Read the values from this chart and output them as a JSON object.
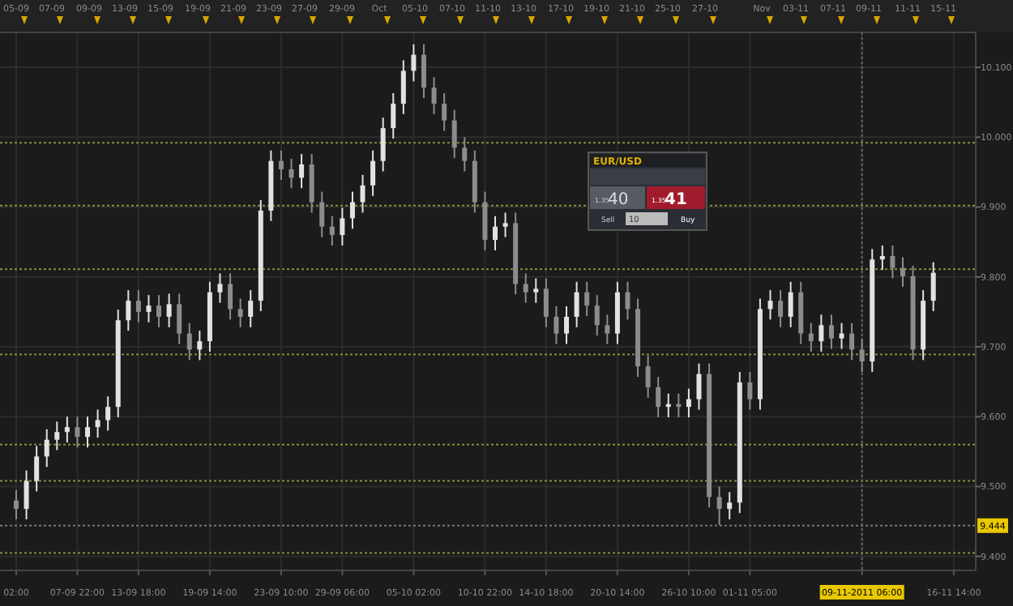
{
  "chart_data": {
    "type": "candlestick",
    "categories": [
      "02:00",
      null,
      null,
      null,
      null,
      null,
      "07-09 22:00",
      null,
      null,
      null,
      null,
      null,
      "13-09 18:00",
      null,
      null,
      null,
      null,
      null,
      null,
      "19-09 14:00",
      null,
      null,
      null,
      null,
      null,
      null,
      "23-09 10:00",
      null,
      null,
      null,
      null,
      null,
      "29-09 06:00",
      null,
      null,
      null,
      null,
      null,
      null,
      "05-10 02:00",
      null,
      null,
      null,
      null,
      null,
      null,
      "10-10 22:00",
      null,
      null,
      null,
      null,
      null,
      "14-10 18:00",
      null,
      null,
      null,
      null,
      null,
      null,
      "20-10 14:00",
      null,
      null,
      null,
      null,
      null,
      null,
      "26-10 10:00",
      null,
      null,
      null,
      null,
      null,
      "01-11 05:00",
      null,
      null,
      null,
      null,
      null,
      null,
      null,
      null,
      null,
      null,
      "09-11-2011 06:00",
      null,
      null,
      null,
      null,
      null,
      null,
      null,
      null,
      "16-11 14:00",
      null,
      null
    ],
    "ohlc": [
      [
        9.48,
        9.495,
        9.453,
        9.468
      ],
      [
        9.468,
        9.523,
        9.453,
        9.508
      ],
      [
        9.508,
        9.558,
        9.493,
        9.543
      ],
      [
        9.543,
        9.582,
        9.528,
        9.567
      ],
      [
        9.567,
        9.593,
        9.552,
        9.578
      ],
      [
        9.578,
        9.6,
        9.563,
        9.585
      ],
      [
        9.585,
        9.6,
        9.556,
        9.571
      ],
      [
        9.571,
        9.6,
        9.556,
        9.585
      ],
      [
        9.585,
        9.61,
        9.57,
        9.595
      ],
      [
        9.595,
        9.629,
        9.58,
        9.614
      ],
      [
        9.614,
        9.753,
        9.599,
        9.738
      ],
      [
        9.738,
        9.781,
        9.723,
        9.766
      ],
      [
        9.766,
        9.781,
        9.735,
        9.75
      ],
      [
        9.75,
        9.774,
        9.735,
        9.759
      ],
      [
        9.759,
        9.774,
        9.728,
        9.743
      ],
      [
        9.743,
        9.776,
        9.728,
        9.761
      ],
      [
        9.761,
        9.776,
        9.704,
        9.719
      ],
      [
        9.719,
        9.734,
        9.681,
        9.696
      ],
      [
        9.696,
        9.723,
        9.681,
        9.708
      ],
      [
        9.708,
        9.793,
        9.693,
        9.778
      ],
      [
        9.778,
        9.805,
        9.763,
        9.79
      ],
      [
        9.79,
        9.805,
        9.739,
        9.754
      ],
      [
        9.754,
        9.769,
        9.728,
        9.743
      ],
      [
        9.743,
        9.781,
        9.728,
        9.766
      ],
      [
        9.766,
        9.91,
        9.751,
        9.895
      ],
      [
        9.895,
        9.981,
        9.88,
        9.966
      ],
      [
        9.966,
        9.981,
        9.939,
        9.954
      ],
      [
        9.954,
        9.969,
        9.927,
        9.942
      ],
      [
        9.942,
        9.976,
        9.927,
        9.961
      ],
      [
        9.961,
        9.976,
        9.892,
        9.907
      ],
      [
        9.907,
        9.922,
        9.857,
        9.872
      ],
      [
        9.872,
        9.887,
        9.845,
        9.86
      ],
      [
        9.86,
        9.899,
        9.845,
        9.884
      ],
      [
        9.884,
        9.922,
        9.869,
        9.907
      ],
      [
        9.907,
        9.946,
        9.892,
        9.931
      ],
      [
        9.931,
        9.981,
        9.916,
        9.966
      ],
      [
        9.966,
        10.028,
        9.951,
        10.013
      ],
      [
        10.013,
        10.063,
        9.998,
        10.048
      ],
      [
        10.048,
        10.11,
        10.033,
        10.095
      ],
      [
        10.095,
        10.133,
        10.08,
        10.118
      ],
      [
        10.118,
        10.133,
        10.056,
        10.071
      ],
      [
        10.071,
        10.086,
        10.033,
        10.048
      ],
      [
        10.048,
        10.063,
        10.009,
        10.024
      ],
      [
        10.024,
        10.039,
        9.97,
        9.985
      ],
      [
        9.985,
        10.0,
        9.951,
        9.966
      ],
      [
        9.966,
        9.981,
        9.892,
        9.907
      ],
      [
        9.907,
        9.922,
        9.838,
        9.853
      ],
      [
        9.853,
        9.887,
        9.838,
        9.872
      ],
      [
        9.872,
        9.892,
        9.857,
        9.877
      ],
      [
        9.877,
        9.892,
        9.775,
        9.79
      ],
      [
        9.79,
        9.805,
        9.763,
        9.778
      ],
      [
        9.778,
        9.798,
        9.763,
        9.783
      ],
      [
        9.783,
        9.798,
        9.728,
        9.743
      ],
      [
        9.743,
        9.758,
        9.704,
        9.719
      ],
      [
        9.719,
        9.758,
        9.704,
        9.743
      ],
      [
        9.743,
        9.793,
        9.728,
        9.778
      ],
      [
        9.778,
        9.793,
        9.744,
        9.759
      ],
      [
        9.759,
        9.774,
        9.716,
        9.731
      ],
      [
        9.731,
        9.746,
        9.704,
        9.719
      ],
      [
        9.719,
        9.793,
        9.704,
        9.778
      ],
      [
        9.778,
        9.793,
        9.739,
        9.754
      ],
      [
        9.754,
        9.769,
        9.657,
        9.672
      ],
      [
        9.672,
        9.687,
        9.627,
        9.642
      ],
      [
        9.642,
        9.657,
        9.599,
        9.614
      ],
      [
        9.614,
        9.633,
        9.599,
        9.618
      ],
      [
        9.618,
        9.633,
        9.599,
        9.614
      ],
      [
        9.614,
        9.64,
        9.599,
        9.625
      ],
      [
        9.625,
        9.676,
        9.61,
        9.661
      ],
      [
        9.661,
        9.676,
        9.47,
        9.485
      ],
      [
        9.485,
        9.5,
        9.445,
        9.468
      ],
      [
        9.468,
        9.492,
        9.453,
        9.477
      ],
      [
        9.477,
        9.664,
        9.462,
        9.649
      ],
      [
        9.649,
        9.664,
        9.61,
        9.625
      ],
      [
        9.625,
        9.769,
        9.61,
        9.754
      ],
      [
        9.754,
        9.781,
        9.739,
        9.766
      ],
      [
        9.766,
        9.781,
        9.728,
        9.743
      ],
      [
        9.743,
        9.793,
        9.728,
        9.778
      ],
      [
        9.778,
        9.793,
        9.704,
        9.719
      ],
      [
        9.719,
        9.734,
        9.693,
        9.708
      ],
      [
        9.708,
        9.746,
        9.693,
        9.731
      ],
      [
        9.731,
        9.746,
        9.697,
        9.712
      ],
      [
        9.712,
        9.734,
        9.697,
        9.719
      ],
      [
        9.719,
        9.734,
        9.681,
        9.696
      ],
      [
        9.696,
        9.711,
        9.664,
        9.679
      ],
      [
        9.679,
        9.84,
        9.664,
        9.825
      ],
      [
        9.825,
        9.845,
        9.81,
        9.83
      ],
      [
        9.83,
        9.845,
        9.798,
        9.813
      ],
      [
        9.813,
        9.828,
        9.786,
        9.801
      ],
      [
        9.801,
        9.816,
        9.681,
        9.696
      ],
      [
        9.696,
        9.781,
        9.681,
        9.766
      ],
      [
        9.766,
        9.821,
        9.751,
        9.806
      ],
      null,
      null,
      null,
      null
    ],
    "ylim": [
      9.38,
      10.15
    ],
    "yticks": [
      {
        "value": 9.4,
        "label": "9.400"
      },
      {
        "value": 9.5,
        "label": "9.500"
      },
      {
        "value": 9.6,
        "label": "9.600"
      },
      {
        "value": 9.7,
        "label": "9.700"
      },
      {
        "value": 9.8,
        "label": "9.800"
      },
      {
        "value": 9.9,
        "label": "9.900"
      },
      {
        "value": 10.0,
        "label": "10.000"
      },
      {
        "value": 10.1,
        "label": "10.100"
      }
    ],
    "grid": true,
    "ref_lines": [
      {
        "axis": "y",
        "value": 9.992,
        "color": "#8c8c3c",
        "line_style": "dotted"
      },
      {
        "axis": "y",
        "value": 9.902,
        "color": "#8c8c3c",
        "line_style": "dotted"
      },
      {
        "axis": "y",
        "value": 9.811,
        "color": "#8c8c3c",
        "line_style": "dotted"
      },
      {
        "axis": "y",
        "value": 9.689,
        "color": "#8c8c3c",
        "line_style": "dotted"
      },
      {
        "axis": "y",
        "value": 9.56,
        "color": "#8c8c3c",
        "line_style": "dotted"
      },
      {
        "axis": "y",
        "value": 9.508,
        "color": "#8c8c3c",
        "line_style": "dotted"
      },
      {
        "axis": "y",
        "value": 9.405,
        "color": "#8c8c3c",
        "line_style": "dotted"
      },
      {
        "axis": "y",
        "value": 9.444,
        "label": "9.444",
        "color": "#777777",
        "line_style": "dotted"
      },
      {
        "axis": "x",
        "value": "09-11-2011 06:00",
        "color": "#666666",
        "line_style": "dotted"
      }
    ],
    "annotations": [
      "EUR/USD",
      "1.35",
      "40",
      "1.35",
      "41",
      "Sell",
      "10",
      "Buy",
      "05-09",
      "07-09",
      "09-09",
      "13-09",
      "15-09",
      "19-09",
      "21-09",
      "23-09",
      "27-09",
      "29-09",
      "Oct",
      "05-10",
      "07-10",
      "11-10",
      "13-10",
      "17-10",
      "19-10",
      "21-10",
      "25-10",
      "27-10",
      "Nov",
      "03-11",
      "07-11",
      "09-11",
      "11-11",
      "15-11"
    ]
  }
}
